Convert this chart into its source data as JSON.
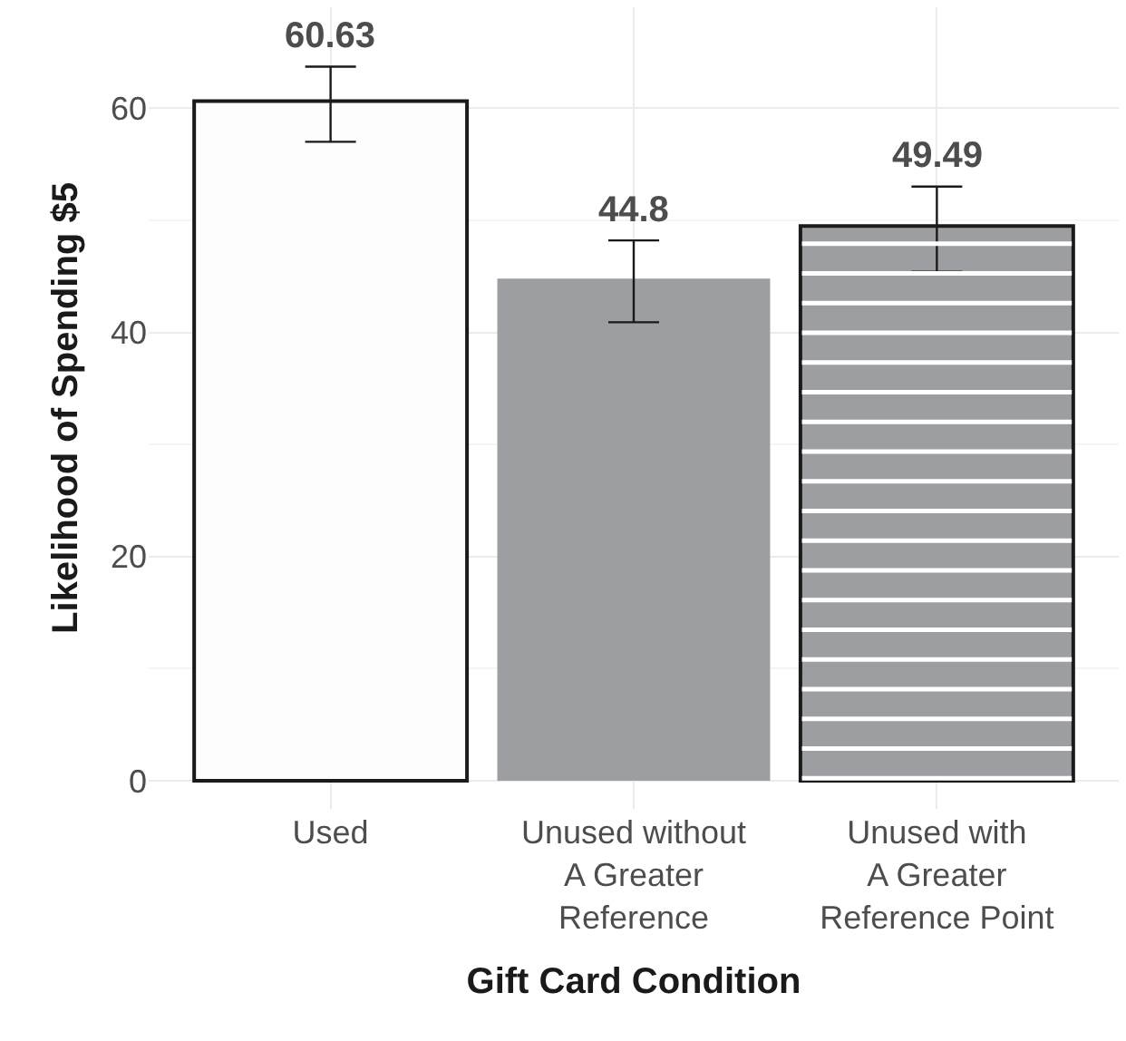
{
  "chart_data": {
    "type": "bar",
    "xlabel": "Gift Card Condition",
    "ylabel": "Likelihood of Spending $5",
    "categories": [
      "Used",
      "Unused without\nA Greater\nReference",
      "Unused with\nA Greater\nReference Point"
    ],
    "values": [
      60.63,
      44.8,
      49.49
    ],
    "colors": [
      "#fdfdfd",
      "#9d9ea2",
      "#9d9ea2"
    ],
    "errors": [
      [
        57.0,
        63.7
      ],
      [
        40.9,
        48.2
      ],
      [
        45.4,
        53.0
      ]
    ],
    "ylim": [
      -2.5,
      69
    ],
    "yticks": [
      0,
      20,
      40,
      60
    ],
    "grid": true,
    "data_labels": true
  }
}
